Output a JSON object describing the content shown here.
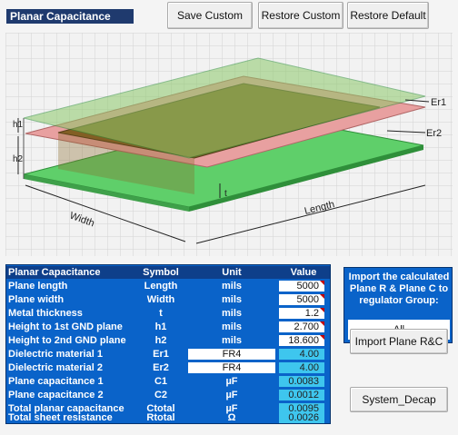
{
  "title": "Planar Capacitance",
  "buttons": {
    "save_custom": "Save Custom",
    "restore_custom": "Restore Custom",
    "restore_default": "Restore Default",
    "import_plane": "Import Plane R&C",
    "system_decap": "System_Decap"
  },
  "diagram": {
    "labels": {
      "er1": "Er1",
      "er2": "Er2",
      "h1": "h1",
      "h2": "h2",
      "t": "t",
      "width": "Width",
      "length": "Length"
    },
    "colors": {
      "green_plane": "#5fcf6a",
      "dielectric_brown": "#7a5a1a",
      "pink_plane": "#e8a0a0",
      "grid": "#cfcfcf"
    }
  },
  "table": {
    "headers": [
      "Planar Capacitance",
      "Symbol",
      "Unit",
      "Value"
    ],
    "rows": [
      {
        "name": "Plane length",
        "symbol": "Length",
        "unit": "mils",
        "value": "5000",
        "kind": "input"
      },
      {
        "name": "Plane width",
        "symbol": "Width",
        "unit": "mils",
        "value": "5000",
        "kind": "input"
      },
      {
        "name": "Metal thickness",
        "symbol": "t",
        "unit": "mils",
        "value": "1.2",
        "kind": "input"
      },
      {
        "name": "Height to 1st GND plane",
        "symbol": "h1",
        "unit": "mils",
        "value": "2.700",
        "kind": "input"
      },
      {
        "name": "Height to 2nd GND plane",
        "symbol": "h2",
        "unit": "mils",
        "value": "18.600",
        "kind": "input"
      },
      {
        "name": "Dielectric material 1",
        "symbol": "Er1",
        "unit": "FR4",
        "value": "4.00",
        "kind": "material"
      },
      {
        "name": "Dielectric material 2",
        "symbol": "Er2",
        "unit": "FR4",
        "value": "4.00",
        "kind": "material"
      },
      {
        "name": "Plane capacitance 1",
        "symbol": "C1",
        "unit": "µF",
        "value": "0.0083",
        "kind": "output"
      },
      {
        "name": "Plane capacitance 2",
        "symbol": "C2",
        "unit": "µF",
        "value": "0.0012",
        "kind": "output"
      },
      {
        "name": "Total planar capacitance",
        "symbol": "Ctotal",
        "unit": "µF",
        "value": "0.0095",
        "kind": "output"
      },
      {
        "name": "Total sheet resistance",
        "symbol": "Rtotal",
        "unit": "Ω",
        "value": "0.0026",
        "kind": "output"
      }
    ]
  },
  "import_panel": {
    "text": "Import the calculated Plane R & Plane C to regulator Group:",
    "selected_group": "All"
  }
}
